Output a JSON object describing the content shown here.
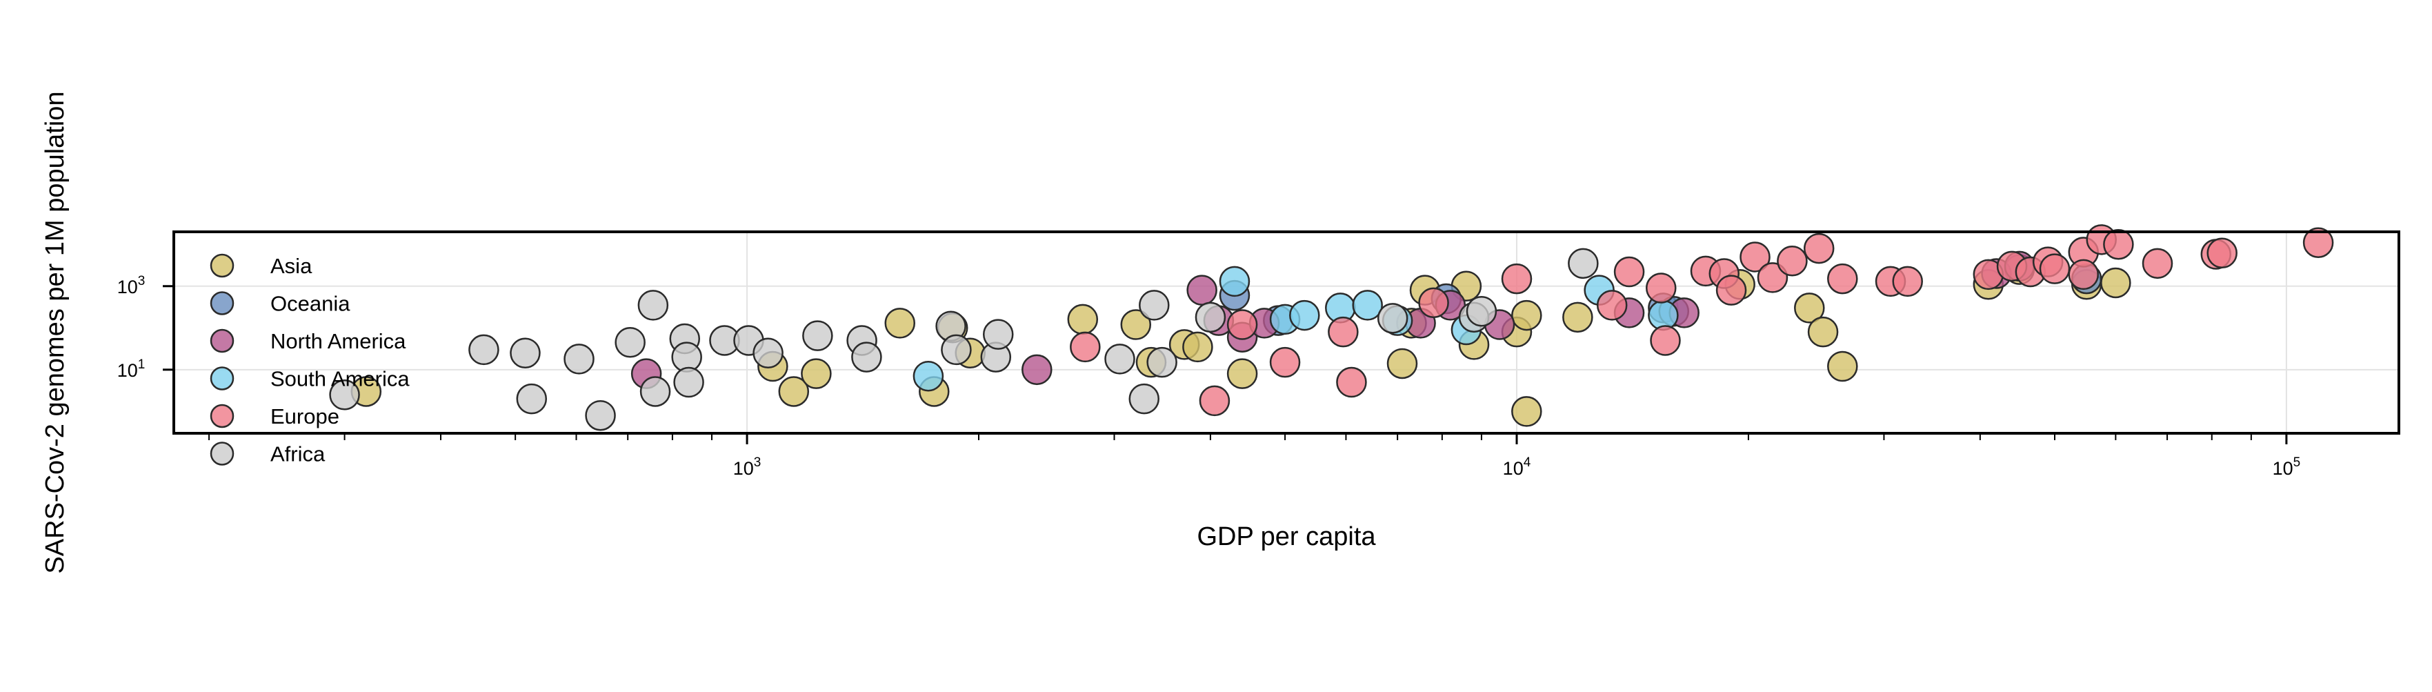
{
  "chart_data": {
    "type": "scatter",
    "title": "",
    "xlabel": "GDP per capita",
    "ylabel": "SARS-Cov-2 genomes per 1M population",
    "xscale": "log",
    "yscale": "log",
    "xlim": [
      180,
      140000
    ],
    "ylim": [
      0.3,
      20000
    ],
    "xticks": [
      {
        "base": "10",
        "exp": "3",
        "value": 1000
      },
      {
        "base": "10",
        "exp": "4",
        "value": 10000
      },
      {
        "base": "10",
        "exp": "5",
        "value": 100000
      }
    ],
    "yticks": [
      {
        "base": "10",
        "exp": "1",
        "value": 10
      },
      {
        "base": "10",
        "exp": "3",
        "value": 1000
      }
    ],
    "grid": true,
    "legend_position": "left",
    "series": [
      {
        "name": "Asia",
        "color": "#d4c26a",
        "points": [
          {
            "x": 320,
            "y": 3
          },
          {
            "x": 1080,
            "y": 12
          },
          {
            "x": 1150,
            "y": 3
          },
          {
            "x": 1230,
            "y": 8
          },
          {
            "x": 1580,
            "y": 130
          },
          {
            "x": 1750,
            "y": 3
          },
          {
            "x": 1850,
            "y": 100
          },
          {
            "x": 1950,
            "y": 25
          },
          {
            "x": 2730,
            "y": 160
          },
          {
            "x": 3200,
            "y": 120
          },
          {
            "x": 3350,
            "y": 15
          },
          {
            "x": 3700,
            "y": 40
          },
          {
            "x": 3850,
            "y": 35
          },
          {
            "x": 4400,
            "y": 8
          },
          {
            "x": 7100,
            "y": 14
          },
          {
            "x": 7300,
            "y": 130
          },
          {
            "x": 7600,
            "y": 800
          },
          {
            "x": 8600,
            "y": 1000
          },
          {
            "x": 8800,
            "y": 40
          },
          {
            "x": 10000,
            "y": 80
          },
          {
            "x": 10300,
            "y": 200
          },
          {
            "x": 10300,
            "y": 1
          },
          {
            "x": 12000,
            "y": 180
          },
          {
            "x": 19500,
            "y": 1100
          },
          {
            "x": 24000,
            "y": 300
          },
          {
            "x": 25000,
            "y": 80
          },
          {
            "x": 26500,
            "y": 12
          },
          {
            "x": 41000,
            "y": 1100
          },
          {
            "x": 45000,
            "y": 2500
          },
          {
            "x": 55000,
            "y": 1100
          },
          {
            "x": 60000,
            "y": 1200
          }
        ]
      },
      {
        "name": "Oceania",
        "color": "#6a8fbf",
        "points": [
          {
            "x": 4300,
            "y": 600
          },
          {
            "x": 4900,
            "y": 150
          },
          {
            "x": 8100,
            "y": 500
          },
          {
            "x": 15500,
            "y": 300
          },
          {
            "x": 16000,
            "y": 250
          },
          {
            "x": 55000,
            "y": 1500
          }
        ]
      },
      {
        "name": "North America",
        "color": "#b5578f",
        "points": [
          {
            "x": 740,
            "y": 8
          },
          {
            "x": 2380,
            "y": 10
          },
          {
            "x": 3900,
            "y": 800
          },
          {
            "x": 4100,
            "y": 150
          },
          {
            "x": 4400,
            "y": 60
          },
          {
            "x": 4700,
            "y": 130
          },
          {
            "x": 7500,
            "y": 130
          },
          {
            "x": 8200,
            "y": 350
          },
          {
            "x": 9500,
            "y": 120
          },
          {
            "x": 14000,
            "y": 230
          },
          {
            "x": 16500,
            "y": 230
          },
          {
            "x": 42000,
            "y": 2000
          },
          {
            "x": 45000,
            "y": 3000
          }
        ]
      },
      {
        "name": "South America",
        "color": "#7fd1ee",
        "points": [
          {
            "x": 1720,
            "y": 7
          },
          {
            "x": 4300,
            "y": 1300
          },
          {
            "x": 5000,
            "y": 160
          },
          {
            "x": 5300,
            "y": 200
          },
          {
            "x": 5900,
            "y": 300
          },
          {
            "x": 6400,
            "y": 350
          },
          {
            "x": 7000,
            "y": 150
          },
          {
            "x": 8600,
            "y": 90
          },
          {
            "x": 12800,
            "y": 800
          },
          {
            "x": 15500,
            "y": 200
          }
        ]
      },
      {
        "name": "Europe",
        "color": "#ef7b88",
        "points": [
          {
            "x": 2750,
            "y": 35
          },
          {
            "x": 4050,
            "y": 1.8
          },
          {
            "x": 4400,
            "y": 120
          },
          {
            "x": 5000,
            "y": 15
          },
          {
            "x": 5950,
            "y": 80
          },
          {
            "x": 6100,
            "y": 5
          },
          {
            "x": 7800,
            "y": 400
          },
          {
            "x": 10000,
            "y": 1500
          },
          {
            "x": 13300,
            "y": 350
          },
          {
            "x": 14000,
            "y": 2200
          },
          {
            "x": 15400,
            "y": 900
          },
          {
            "x": 15600,
            "y": 50
          },
          {
            "x": 17600,
            "y": 2300
          },
          {
            "x": 18600,
            "y": 2000
          },
          {
            "x": 19000,
            "y": 800
          },
          {
            "x": 20400,
            "y": 5000
          },
          {
            "x": 21500,
            "y": 1600
          },
          {
            "x": 22800,
            "y": 4000
          },
          {
            "x": 24700,
            "y": 8000
          },
          {
            "x": 26500,
            "y": 1500
          },
          {
            "x": 30600,
            "y": 1300
          },
          {
            "x": 32200,
            "y": 1300
          },
          {
            "x": 41000,
            "y": 1900
          },
          {
            "x": 44000,
            "y": 3000
          },
          {
            "x": 46500,
            "y": 2200
          },
          {
            "x": 49000,
            "y": 3800
          },
          {
            "x": 50000,
            "y": 2600
          },
          {
            "x": 54500,
            "y": 6500
          },
          {
            "x": 54500,
            "y": 1900
          },
          {
            "x": 57500,
            "y": 13000
          },
          {
            "x": 60500,
            "y": 10000
          },
          {
            "x": 68000,
            "y": 3500
          },
          {
            "x": 81000,
            "y": 5800
          },
          {
            "x": 82500,
            "y": 6200
          },
          {
            "x": 110000,
            "y": 11000
          }
        ]
      },
      {
        "name": "Africa",
        "color": "#cccccc",
        "points": [
          {
            "x": 300,
            "y": 2.5
          },
          {
            "x": 455,
            "y": 30
          },
          {
            "x": 515,
            "y": 25
          },
          {
            "x": 525,
            "y": 2
          },
          {
            "x": 605,
            "y": 18
          },
          {
            "x": 645,
            "y": 0.8
          },
          {
            "x": 705,
            "y": 45
          },
          {
            "x": 755,
            "y": 350
          },
          {
            "x": 760,
            "y": 3
          },
          {
            "x": 830,
            "y": 55
          },
          {
            "x": 835,
            "y": 20
          },
          {
            "x": 840,
            "y": 5
          },
          {
            "x": 935,
            "y": 50
          },
          {
            "x": 1005,
            "y": 50
          },
          {
            "x": 1065,
            "y": 25
          },
          {
            "x": 1235,
            "y": 65
          },
          {
            "x": 1410,
            "y": 50
          },
          {
            "x": 1430,
            "y": 20
          },
          {
            "x": 1840,
            "y": 110
          },
          {
            "x": 1870,
            "y": 30
          },
          {
            "x": 2105,
            "y": 20
          },
          {
            "x": 2120,
            "y": 70
          },
          {
            "x": 3050,
            "y": 18
          },
          {
            "x": 3280,
            "y": 2
          },
          {
            "x": 3380,
            "y": 350
          },
          {
            "x": 3460,
            "y": 15
          },
          {
            "x": 4000,
            "y": 180
          },
          {
            "x": 6900,
            "y": 170
          },
          {
            "x": 8800,
            "y": 180
          },
          {
            "x": 9000,
            "y": 250
          },
          {
            "x": 12200,
            "y": 3500
          }
        ]
      }
    ]
  }
}
